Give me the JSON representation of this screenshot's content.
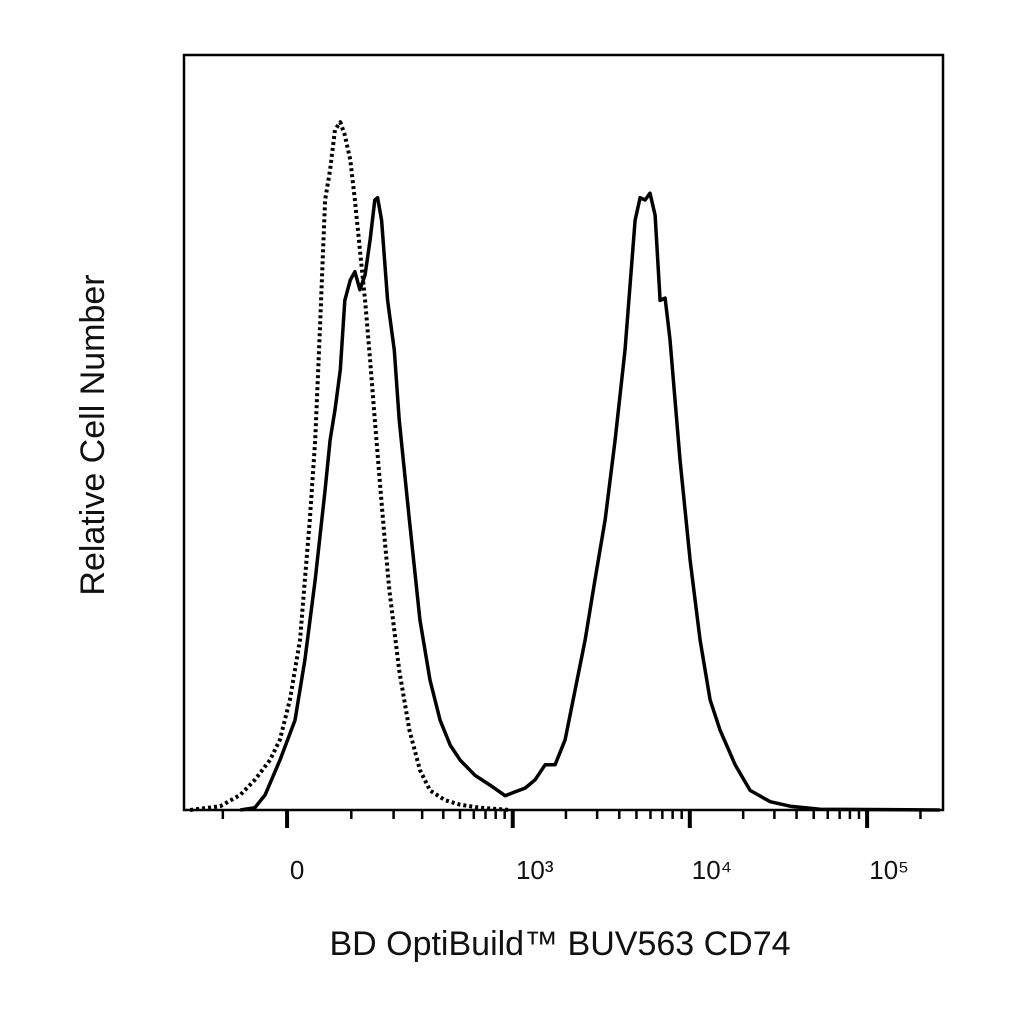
{
  "chart_data": {
    "type": "histogram-overlay",
    "x_label": "BD OptiBuild™ BUV563 CD74",
    "y_label": "Relative Cell Number",
    "xscale": "asinh",
    "xlim": [
      -190,
      268000
    ],
    "ylim": [
      0,
      100
    ],
    "xticks": [
      {
        "value": 0,
        "label": "0"
      },
      {
        "value": 1000,
        "label": "10³"
      },
      {
        "value": 10000,
        "label": "10⁴"
      },
      {
        "value": 100000,
        "label": "10⁵"
      }
    ],
    "xminorticks": [
      -100,
      100,
      200,
      300,
      400,
      500,
      600,
      700,
      800,
      900,
      2000,
      3000,
      4000,
      5000,
      6000,
      7000,
      8000,
      9000,
      20000,
      30000,
      40000,
      50000,
      60000,
      70000,
      80000,
      90000,
      200000
    ],
    "series": [
      {
        "color": "#000000",
        "style": "dotted",
        "x": [
          -173,
          -105,
          -69,
          -46,
          -24,
          -10,
          4,
          18,
          25,
          32,
          40,
          47,
          55,
          63,
          71,
          80,
          88,
          98,
          107,
          117,
          128,
          139,
          150,
          162,
          175,
          188,
          202,
          217,
          251,
          291,
          334,
          410,
          501,
          652,
          966
        ],
        "values": [
          0,
          0.5,
          2.0,
          4.0,
          6.6,
          9.3,
          14.6,
          22.5,
          30.5,
          38.4,
          49.0,
          63.6,
          80.8,
          84.8,
          90.1,
          91.1,
          89.4,
          86.1,
          80.8,
          74.2,
          67.5,
          59.6,
          51.7,
          43.7,
          35.8,
          29.1,
          23.8,
          18.5,
          10.6,
          5.3,
          2.6,
          1.3,
          0.7,
          0.3,
          0
        ]
      },
      {
        "color": "#000000",
        "style": "solid",
        "x": [
          -69,
          -46,
          -31,
          -10,
          11,
          25,
          40,
          55,
          63,
          71,
          80,
          88,
          98,
          107,
          117,
          128,
          139,
          150,
          157,
          167,
          183,
          202,
          217,
          251,
          291,
          334,
          383,
          439,
          501,
          610,
          743,
          905,
          1030,
          1175,
          1339,
          1526,
          1738,
          1977,
          2252,
          2565,
          2920,
          3326,
          3788,
          4312,
          4911,
          5243,
          5596,
          5960,
          6367,
          6795,
          7255,
          7736,
          8806,
          10037,
          11428,
          13011,
          14809,
          18008,
          21892,
          28398,
          36797,
          54313,
          257121
        ],
        "values": [
          0,
          0.3,
          2.0,
          6.6,
          11.9,
          19.9,
          30.5,
          42.4,
          49.0,
          53.0,
          58.3,
          67.5,
          70.2,
          71.3,
          68.9,
          70.9,
          75.5,
          80.8,
          81.1,
          78.1,
          67.5,
          60.9,
          51.7,
          38.4,
          25.2,
          17.2,
          11.9,
          8.6,
          6.6,
          4.6,
          3.3,
          1.9,
          2.4,
          2.9,
          4.0,
          6.0,
          6.0,
          9.3,
          15.9,
          22.5,
          30.5,
          38.4,
          49.0,
          60.9,
          78.1,
          81.1,
          80.8,
          81.7,
          78.8,
          67.5,
          67.8,
          62.3,
          46.4,
          33.1,
          22.5,
          14.6,
          10.6,
          6.0,
          2.6,
          1.1,
          0.5,
          0.1,
          0
        ]
      }
    ]
  }
}
